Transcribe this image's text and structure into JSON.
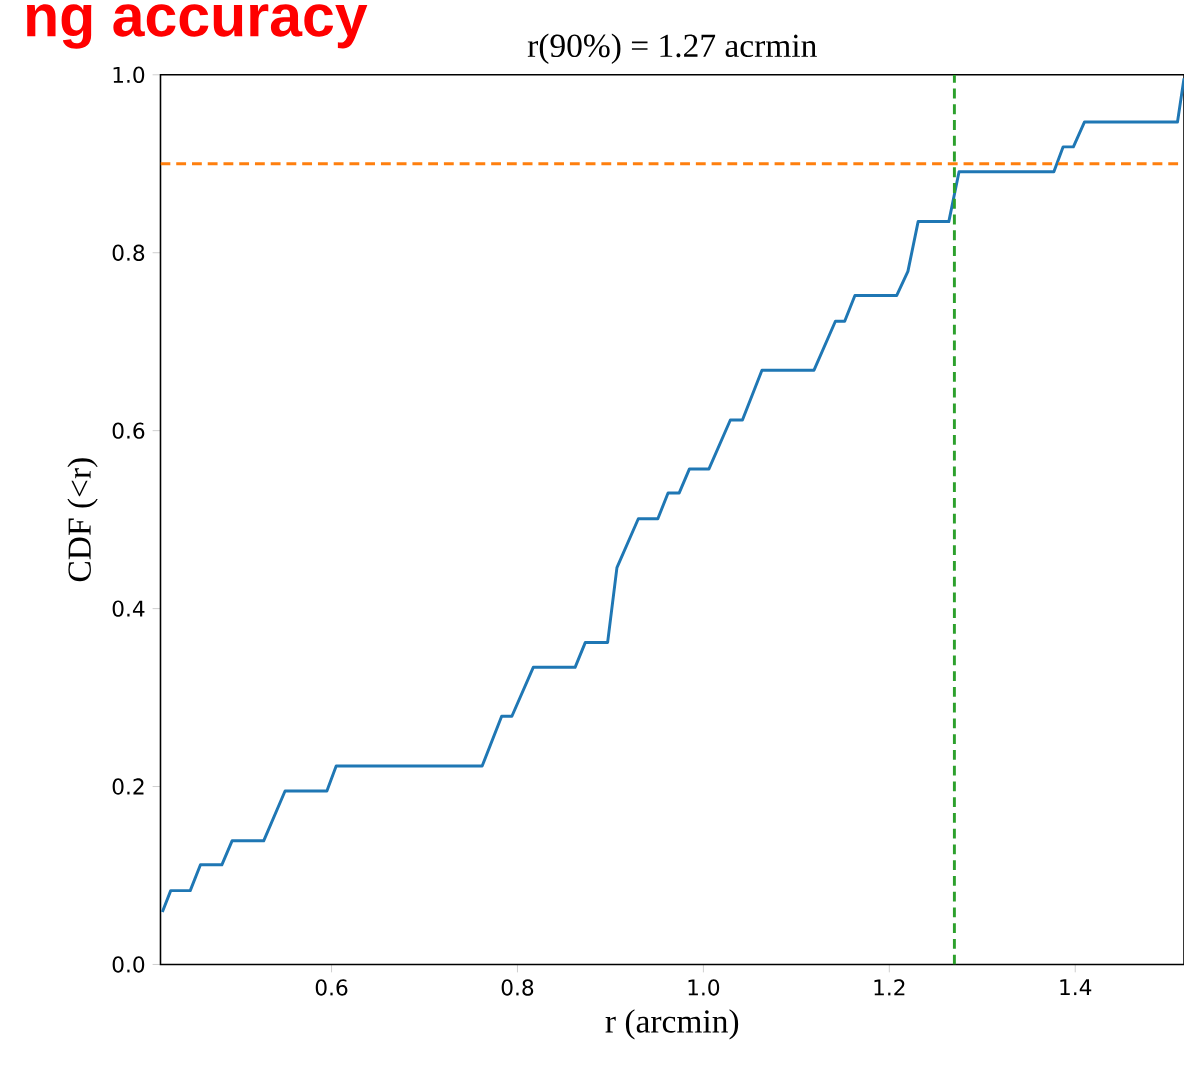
{
  "chart_data": {
    "type": "line",
    "title": "r(90%) = 1.27 acrmin",
    "xlabel": "r (arcmin)",
    "ylabel": "CDF (<r)",
    "annotations": [
      "ng accuracy"
    ],
    "xlim": [
      0.416,
      1.517
    ],
    "ylim": [
      0,
      1.0
    ],
    "xticks": [
      0.6,
      0.8,
      {
        "value": 1,
        "label": "1.0"
      },
      1.2,
      1.4
    ],
    "yticks": [
      {
        "value": 0,
        "label": "0.0"
      },
      {
        "value": 0.2,
        "label": "0.2"
      },
      {
        "value": 0.4,
        "label": "0.4"
      },
      {
        "value": 0.6,
        "label": "0.6"
      },
      {
        "value": 0.8,
        "label": "0.8"
      },
      {
        "value": 1.0,
        "label": "1.0"
      }
    ],
    "x": [
      0.418,
      0.427,
      0.448,
      0.459,
      0.482,
      0.493,
      0.527,
      0.55,
      0.595,
      0.605,
      0.762,
      0.783,
      0.794,
      0.817,
      0.862,
      0.873,
      0.897,
      0.907,
      0.93,
      0.951,
      0.962,
      0.974,
      0.985,
      1.006,
      1.029,
      1.042,
      1.063,
      1.119,
      1.142,
      1.152,
      1.163,
      1.208,
      1.22,
      1.231,
      1.264,
      1.275,
      1.377,
      1.387,
      1.398,
      1.41,
      1.51,
      1.517
    ],
    "series": [
      {
        "color": "#1f77b4",
        "values": [
          0.059,
          0.083,
          0.083,
          0.112,
          0.112,
          0.139,
          0.139,
          0.195,
          0.195,
          0.223,
          0.223,
          0.279,
          0.279,
          0.334,
          0.334,
          0.362,
          0.362,
          0.446,
          0.501,
          0.501,
          0.53,
          0.53,
          0.557,
          0.557,
          0.612,
          0.612,
          0.668,
          0.668,
          0.723,
          0.723,
          0.752,
          0.752,
          0.779,
          0.835,
          0.835,
          0.891,
          0.891,
          0.919,
          0.919,
          0.947,
          0.947,
          0.996
        ]
      }
    ],
    "ref_lines": [
      {
        "axis": "y",
        "value": 0.9,
        "color": "#ff7f0e",
        "line_style": "dashed"
      },
      {
        "axis": "x",
        "value": 1.27,
        "color": "#2ca02c",
        "line_style": "dashed"
      }
    ]
  }
}
